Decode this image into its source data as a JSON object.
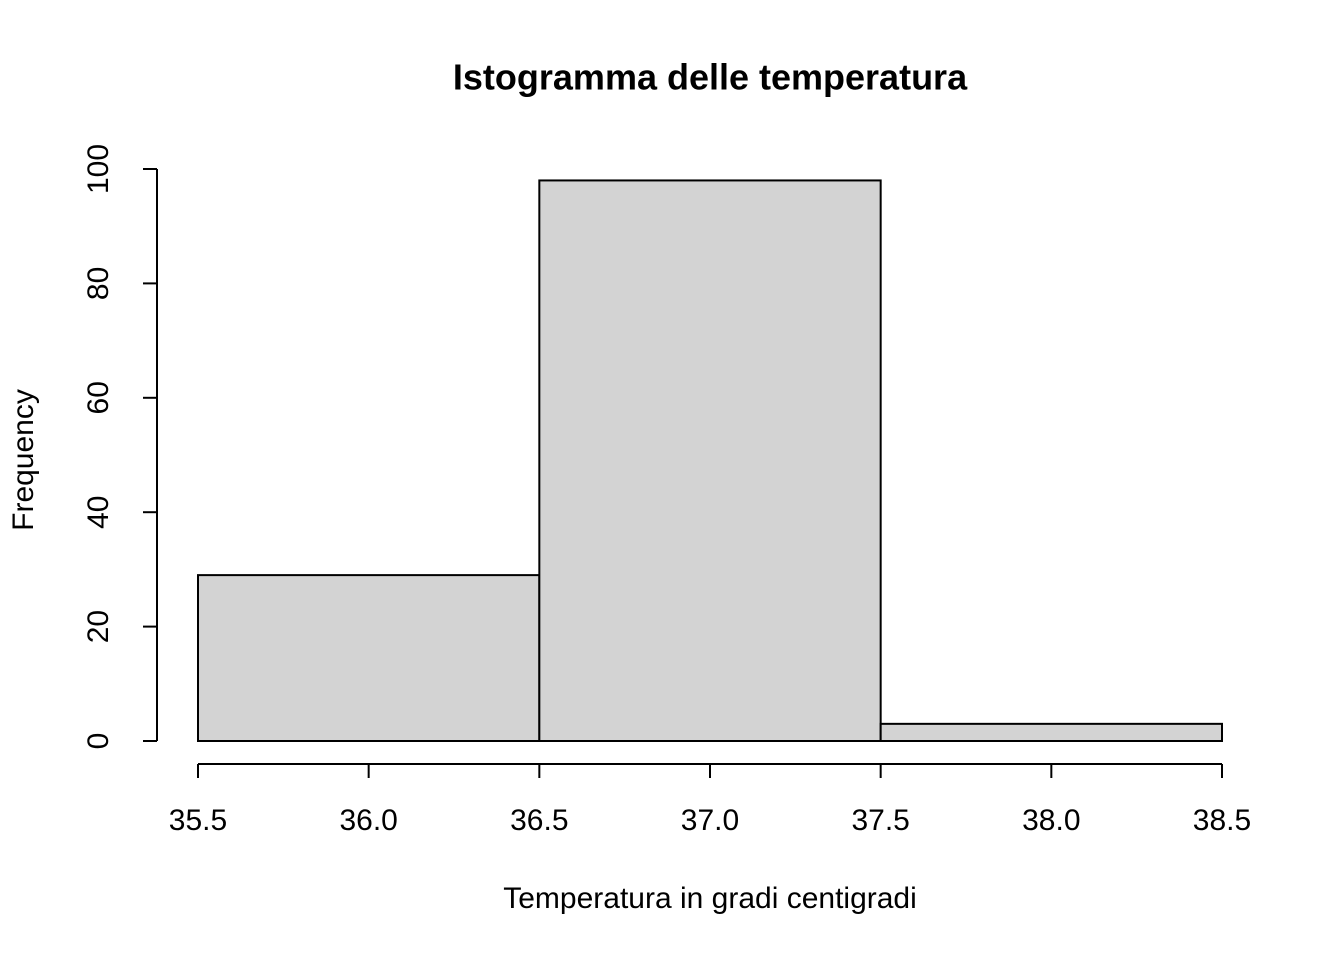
{
  "chart_data": {
    "type": "histogram",
    "title": "Istogramma delle temperatura",
    "x_label": "Temperatura in gradi centigradi",
    "y_label": "Frequency",
    "bins": [
      35.5,
      36.5,
      37.5,
      38.5
    ],
    "values": [
      29,
      98,
      3
    ],
    "color": "#d3d3d3",
    "xlim": [
      35.5,
      38.5
    ],
    "xticks": [
      35.5,
      {
        "value": 36,
        "label": "36.0"
      },
      36.5,
      {
        "value": 37,
        "label": "37.0"
      },
      37.5,
      {
        "value": 38,
        "label": "38.0"
      },
      38.5
    ],
    "ylim": [
      0,
      100
    ],
    "yticks": [
      0,
      20,
      40,
      60,
      80,
      100
    ]
  }
}
